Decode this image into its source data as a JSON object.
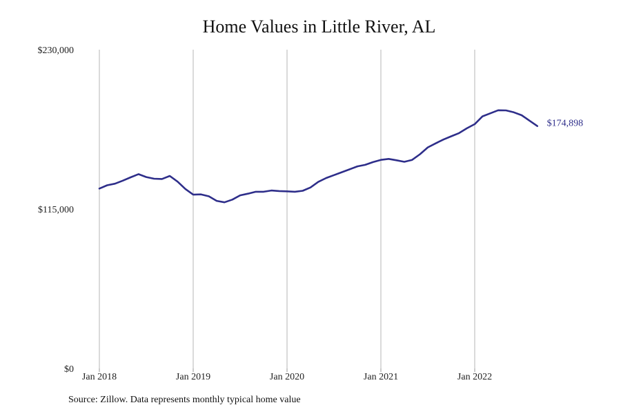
{
  "chart_data": {
    "type": "line",
    "title": "Home Values in Little River, AL",
    "xlabel": "",
    "ylabel": "",
    "y_ticks": [
      {
        "value": 0,
        "label": "$0"
      },
      {
        "value": 115000,
        "label": "$115,000"
      },
      {
        "value": 230000,
        "label": "$230,000"
      }
    ],
    "ylim": [
      0,
      230000
    ],
    "x_ticks": [
      {
        "value": "2018-01",
        "label": "Jan 2018"
      },
      {
        "value": "2019-01",
        "label": "Jan 2019"
      },
      {
        "value": "2020-01",
        "label": "Jan 2020"
      },
      {
        "value": "2021-01",
        "label": "Jan 2021"
      },
      {
        "value": "2022-01",
        "label": "Jan 2022"
      }
    ],
    "grid": "vertical",
    "end_label": "$174,898",
    "line_color": "#2e2e8a",
    "series": [
      {
        "x": [
          "2018-01",
          "2018-02",
          "2018-03",
          "2018-04",
          "2018-05",
          "2018-06",
          "2018-07",
          "2018-08",
          "2018-09",
          "2018-10",
          "2018-11",
          "2018-12",
          "2019-01",
          "2019-02",
          "2019-03",
          "2019-04",
          "2019-05",
          "2019-06",
          "2019-07",
          "2019-08",
          "2019-09",
          "2019-10",
          "2019-11",
          "2019-12",
          "2020-01",
          "2020-02",
          "2020-03",
          "2020-04",
          "2020-05",
          "2020-06",
          "2020-07",
          "2020-08",
          "2020-09",
          "2020-10",
          "2020-11",
          "2020-12",
          "2021-01",
          "2021-02",
          "2021-03",
          "2021-04",
          "2021-05",
          "2021-06",
          "2021-07",
          "2021-08",
          "2021-09",
          "2021-10",
          "2021-11",
          "2021-12",
          "2022-01",
          "2022-02",
          "2022-03",
          "2022-04",
          "2022-05",
          "2022-06",
          "2022-07",
          "2022-08",
          "2022-09"
        ],
        "values": [
          129800,
          132200,
          133300,
          135500,
          137900,
          140200,
          138100,
          136900,
          136700,
          138900,
          134800,
          129500,
          125400,
          125600,
          124200,
          120900,
          119900,
          121800,
          124900,
          126100,
          127500,
          127500,
          128400,
          128000,
          127800,
          127500,
          128200,
          130600,
          134600,
          137400,
          139500,
          141600,
          143700,
          145800,
          146900,
          148900,
          150500,
          151200,
          150200,
          149100,
          150500,
          154600,
          159500,
          162400,
          165200,
          167500,
          169800,
          173300,
          176300,
          181900,
          184100,
          186300,
          186200,
          184800,
          182700,
          178800,
          174898
        ]
      }
    ]
  },
  "source": "Source: Zillow. Data represents monthly typical home value"
}
